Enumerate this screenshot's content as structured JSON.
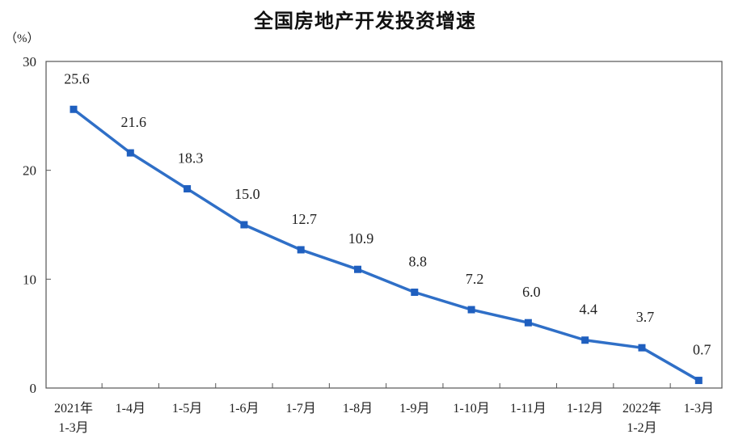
{
  "chart_data": {
    "type": "line",
    "title": "全国房地产开发投资增速",
    "ylabel": "（%）",
    "xlabel": "",
    "ylim": [
      0,
      30
    ],
    "yticks": [
      "0",
      "10",
      "20",
      "30"
    ],
    "categories": [
      [
        "2021年",
        "1-3月"
      ],
      [
        "1-4月"
      ],
      [
        "1-5月"
      ],
      [
        "1-6月"
      ],
      [
        "1-7月"
      ],
      [
        "1-8月"
      ],
      [
        "1-9月"
      ],
      [
        "1-10月"
      ],
      [
        "1-11月"
      ],
      [
        "1-12月"
      ],
      [
        "2022年",
        "1-2月"
      ],
      [
        "1-3月"
      ]
    ],
    "values": [
      25.6,
      21.6,
      18.3,
      15.0,
      12.7,
      10.9,
      8.8,
      7.2,
      6.0,
      4.4,
      3.7,
      0.7
    ],
    "value_labels": [
      "25.6",
      "21.6",
      "18.3",
      "15.0",
      "12.7",
      "10.9",
      "8.8",
      "7.2",
      "6.0",
      "4.4",
      "3.7",
      "0.7"
    ],
    "grid": false,
    "line_color": "#2f6fc7",
    "marker_color": "#1f5fbf"
  }
}
